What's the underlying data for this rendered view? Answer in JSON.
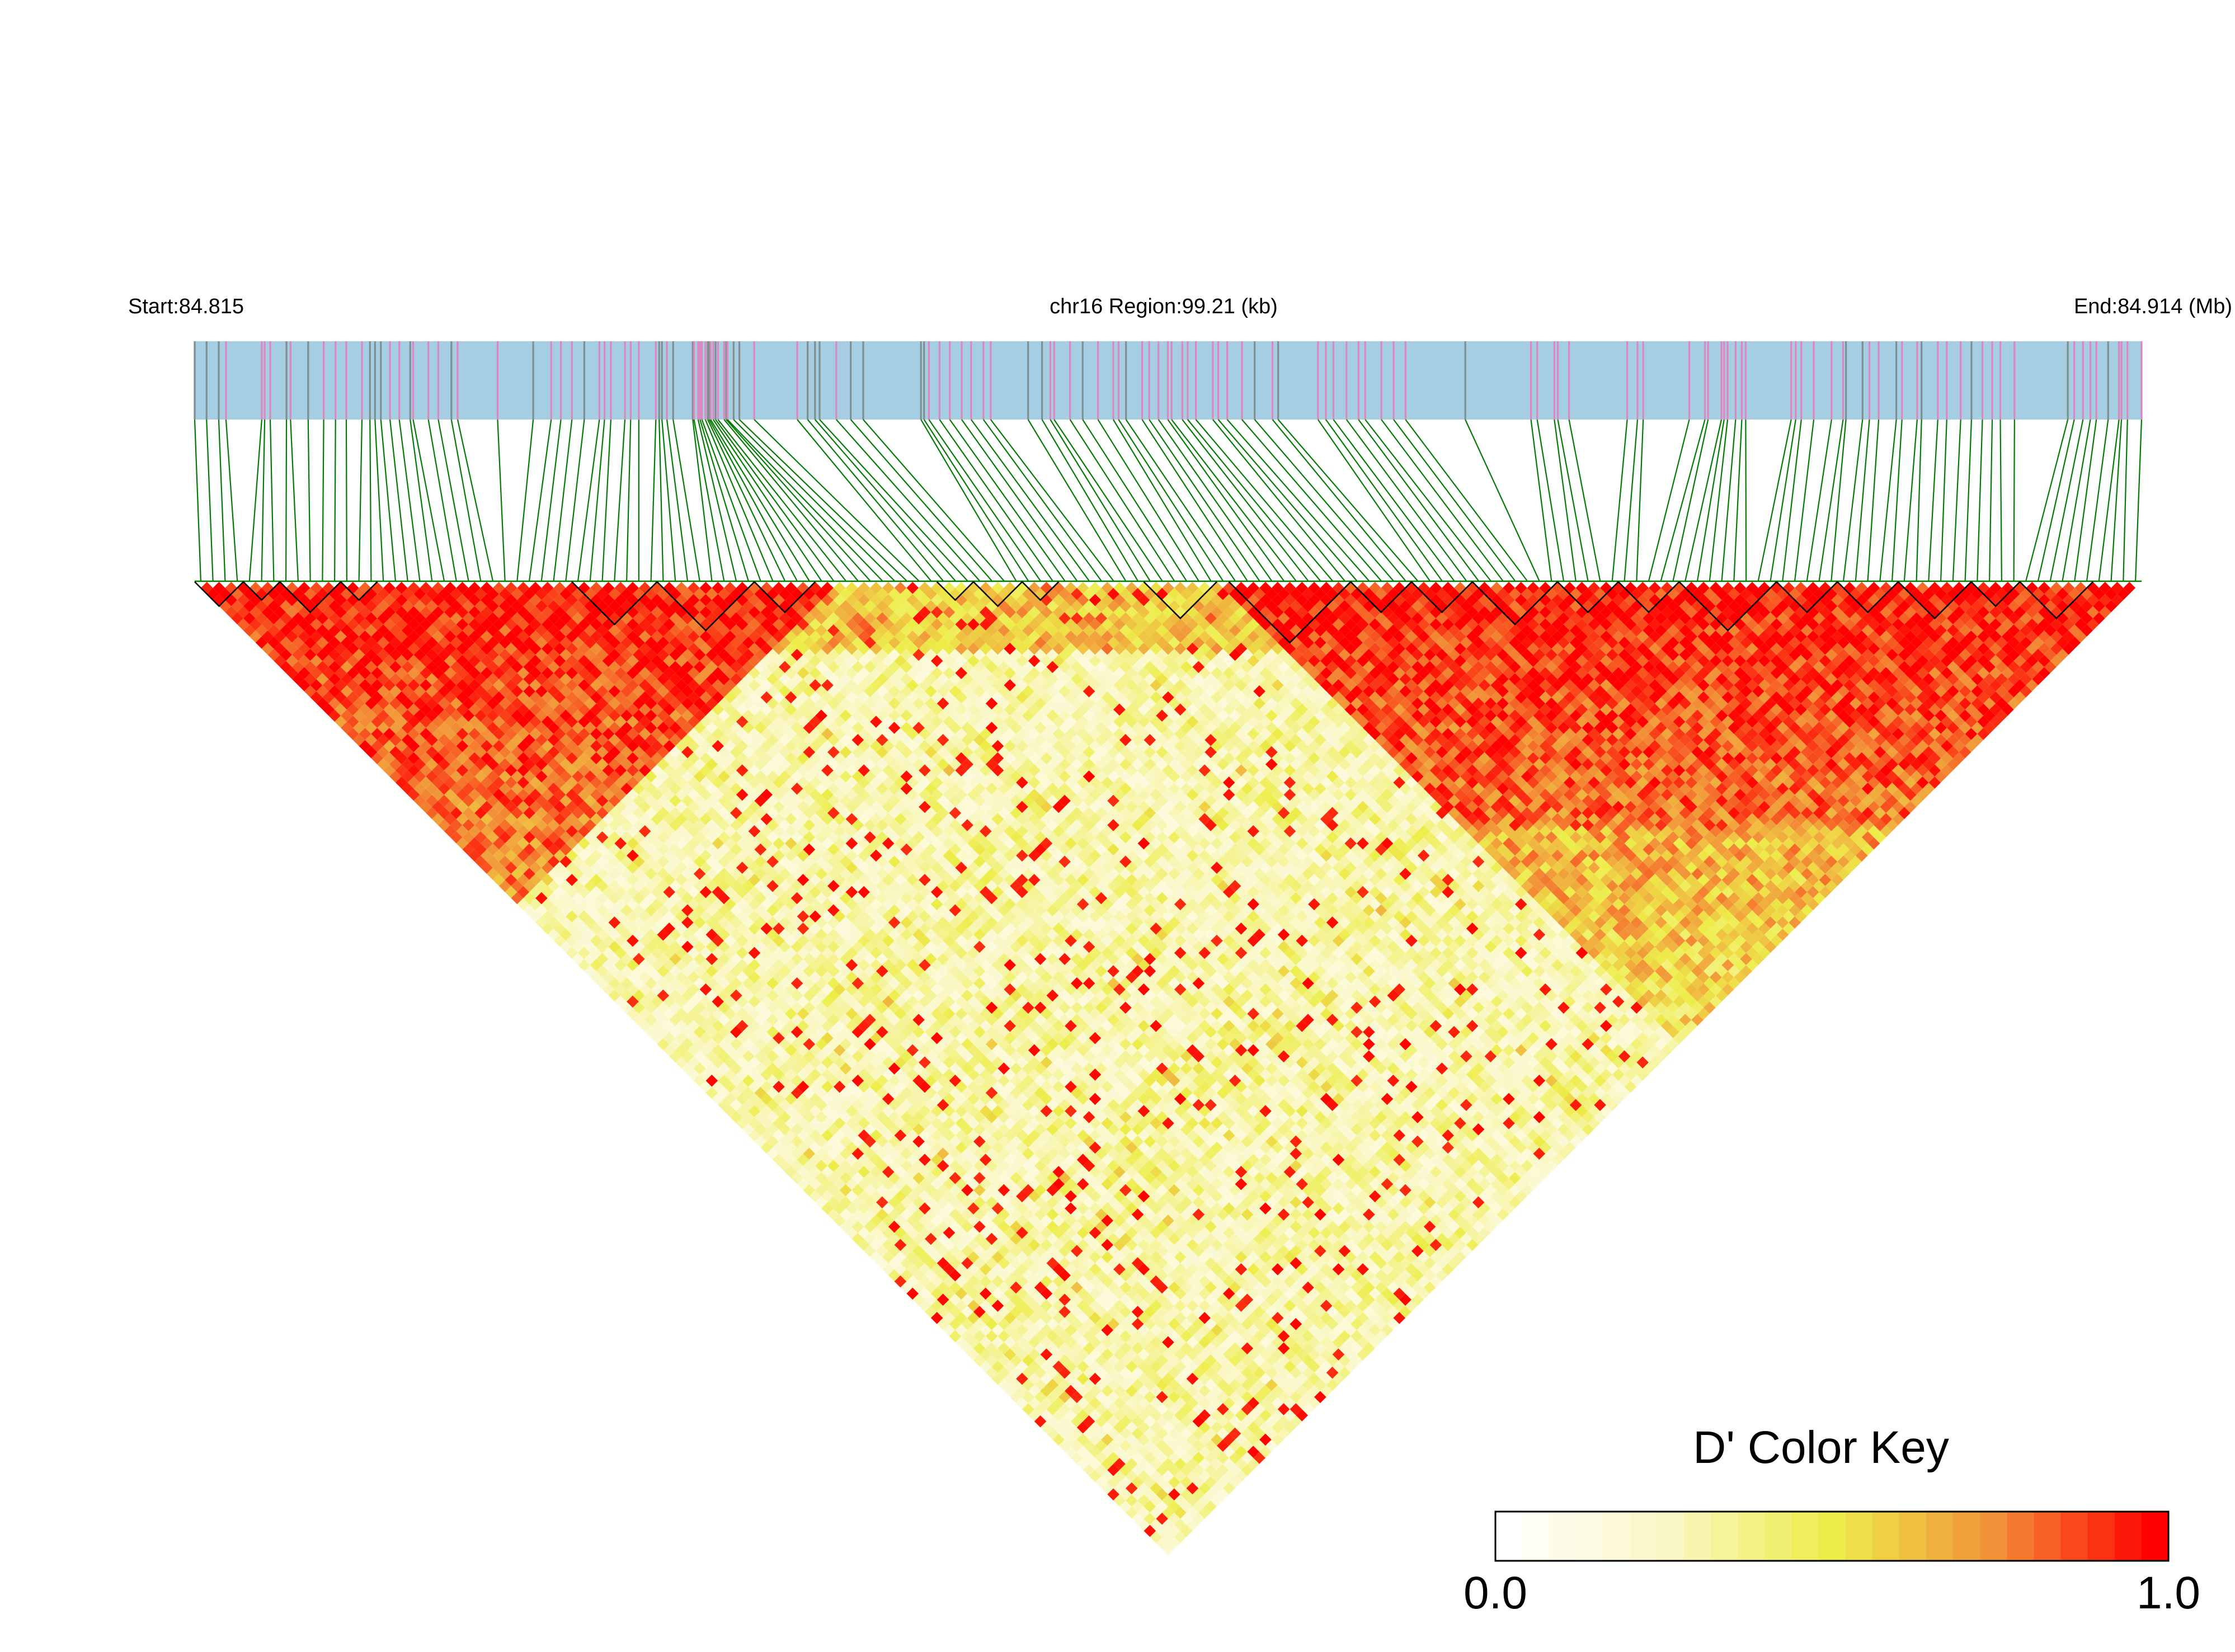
{
  "header": {
    "start_label": "Start:84.815",
    "region_label": "chr16 Region:99.21 (kb)",
    "end_label": "End:84.914 (Mb)"
  },
  "legend": {
    "title": "D' Color Key",
    "min_label": "0.0",
    "max_label": "1.0"
  },
  "colors": {
    "track_background": "#a6cee3",
    "snp_pink": "#de86c0",
    "snp_gray": "#7f8f8f",
    "connector_green": "#007a00",
    "block_outline": "#000000",
    "scale_low": "#ffffff",
    "scale_mid": "#eded4a",
    "scale_high": "#ff0000"
  },
  "chart_data": {
    "type": "heatmap",
    "description_free": true,
    "chromosome": "chr16",
    "region_start_mb": 84.815,
    "region_end_mb": 84.914,
    "region_length_kb": 99.21,
    "metric": "D'",
    "value_range": [
      0.0,
      1.0
    ],
    "color_scale": [
      "#ffffff",
      "#f7f4b4",
      "#eded4a",
      "#f2a23a",
      "#ff0000"
    ],
    "snp_count": 160,
    "haplotype_blocks_snp_ranges": [
      [
        0,
        3
      ],
      [
        4,
        6
      ],
      [
        7,
        11
      ],
      [
        12,
        14
      ],
      [
        31,
        37
      ],
      [
        38,
        45
      ],
      [
        46,
        50
      ],
      [
        61,
        63
      ],
      [
        64,
        67
      ],
      [
        68,
        70
      ],
      [
        78,
        83
      ],
      [
        85,
        94
      ],
      [
        95,
        99
      ],
      [
        100,
        104
      ],
      [
        105,
        111
      ],
      [
        112,
        116
      ],
      [
        117,
        121
      ],
      [
        122,
        129
      ],
      [
        130,
        134
      ],
      [
        135,
        139
      ],
      [
        140,
        145
      ],
      [
        146,
        149
      ],
      [
        150,
        155
      ]
    ],
    "high_ld_regions_snp_ranges": [
      [
        0,
        52
      ],
      [
        84,
        159
      ]
    ]
  }
}
